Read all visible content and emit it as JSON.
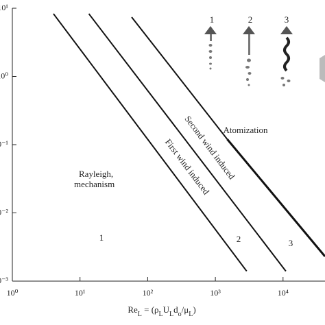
{
  "chart_data": {
    "type": "line",
    "xlabel": [
      {
        "text": "Re"
      },
      {
        "sub": "L"
      },
      {
        "text": " = (ρ"
      },
      {
        "sub": "L"
      },
      {
        "text": "U"
      },
      {
        "sub": "L"
      },
      {
        "text": "d"
      },
      {
        "sub": "o"
      },
      {
        "text": "/μ"
      },
      {
        "sub": "L"
      },
      {
        "text": ")"
      }
    ],
    "xscale": "log",
    "yscale": "log",
    "xlim": [
      1,
      41700
    ],
    "ylim": [
      0.001,
      10
    ],
    "xticks": [
      {
        "value": 1,
        "label": "10⁰"
      },
      {
        "value": 10,
        "label": "10¹"
      },
      {
        "value": 100,
        "label": "10²"
      },
      {
        "value": 1000,
        "label": "10³"
      },
      {
        "value": 10000,
        "label": "10⁴"
      }
    ],
    "yticks": [
      {
        "value": 10,
        "label": "10¹"
      },
      {
        "value": 1,
        "label": "10⁰"
      },
      {
        "value": 0.1,
        "label": "10⁻¹"
      },
      {
        "value": 0.01,
        "label": "10⁻²"
      },
      {
        "value": 0.001,
        "label": "10⁻³"
      }
    ],
    "series": [
      {
        "x": [
          4.05,
          2900
        ],
        "values": [
          8.3,
          0.0014
        ],
        "color": "#111",
        "width": 2
      },
      {
        "x": [
          13.5,
          11000
        ],
        "values": [
          8.3,
          0.0014
        ],
        "color": "#111",
        "width": 2
      },
      {
        "x": [
          58,
          1500
        ],
        "values": [
          7.4,
          0.12
        ],
        "color": "#111",
        "width": 2
      },
      {
        "x": [
          1500,
          41700
        ],
        "values": [
          0.12,
          0.0023
        ],
        "color": "#111",
        "width": 3
      }
    ],
    "annotations": {
      "rayleigh": [
        "Rayleigh,",
        "mechanism"
      ],
      "first": "First wind induced",
      "second": "Second wind induced",
      "atomization": "Atomization",
      "r1": "1",
      "r2": "2",
      "r3": "3"
    },
    "icon_labels": [
      "1",
      "2",
      "3"
    ]
  }
}
